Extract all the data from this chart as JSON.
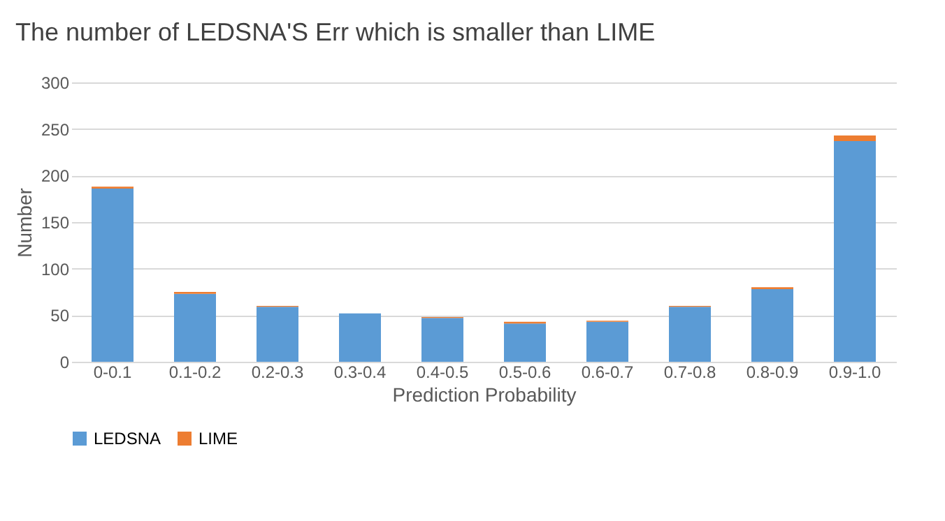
{
  "chart_data": {
    "type": "bar",
    "title": "The number of LEDSNA'S Err which is smaller than LIME",
    "xlabel": "Prediction Probability",
    "ylabel": "Number",
    "stacked": true,
    "categories": [
      "0-0.1",
      "0.1-0.2",
      "0.2-0.3",
      "0.3-0.4",
      "0.4-0.5",
      "0.5-0.6",
      "0.6-0.7",
      "0.7-0.8",
      "0.8-0.9",
      "0.9-1.0"
    ],
    "series": [
      {
        "name": "LEDSNA",
        "color": "#5b9bd5",
        "values": [
          186,
          73,
          59,
          52,
          47,
          41,
          43,
          59,
          78,
          237
        ]
      },
      {
        "name": "LIME",
        "color": "#ed7d31",
        "values": [
          2,
          2,
          1,
          null,
          1,
          2,
          1,
          1,
          2,
          6
        ]
      }
    ],
    "ylim": [
      0,
      300
    ],
    "yticks": [
      0,
      50,
      100,
      150,
      200,
      250,
      300
    ],
    "grid": "y",
    "legend": "bottom"
  }
}
